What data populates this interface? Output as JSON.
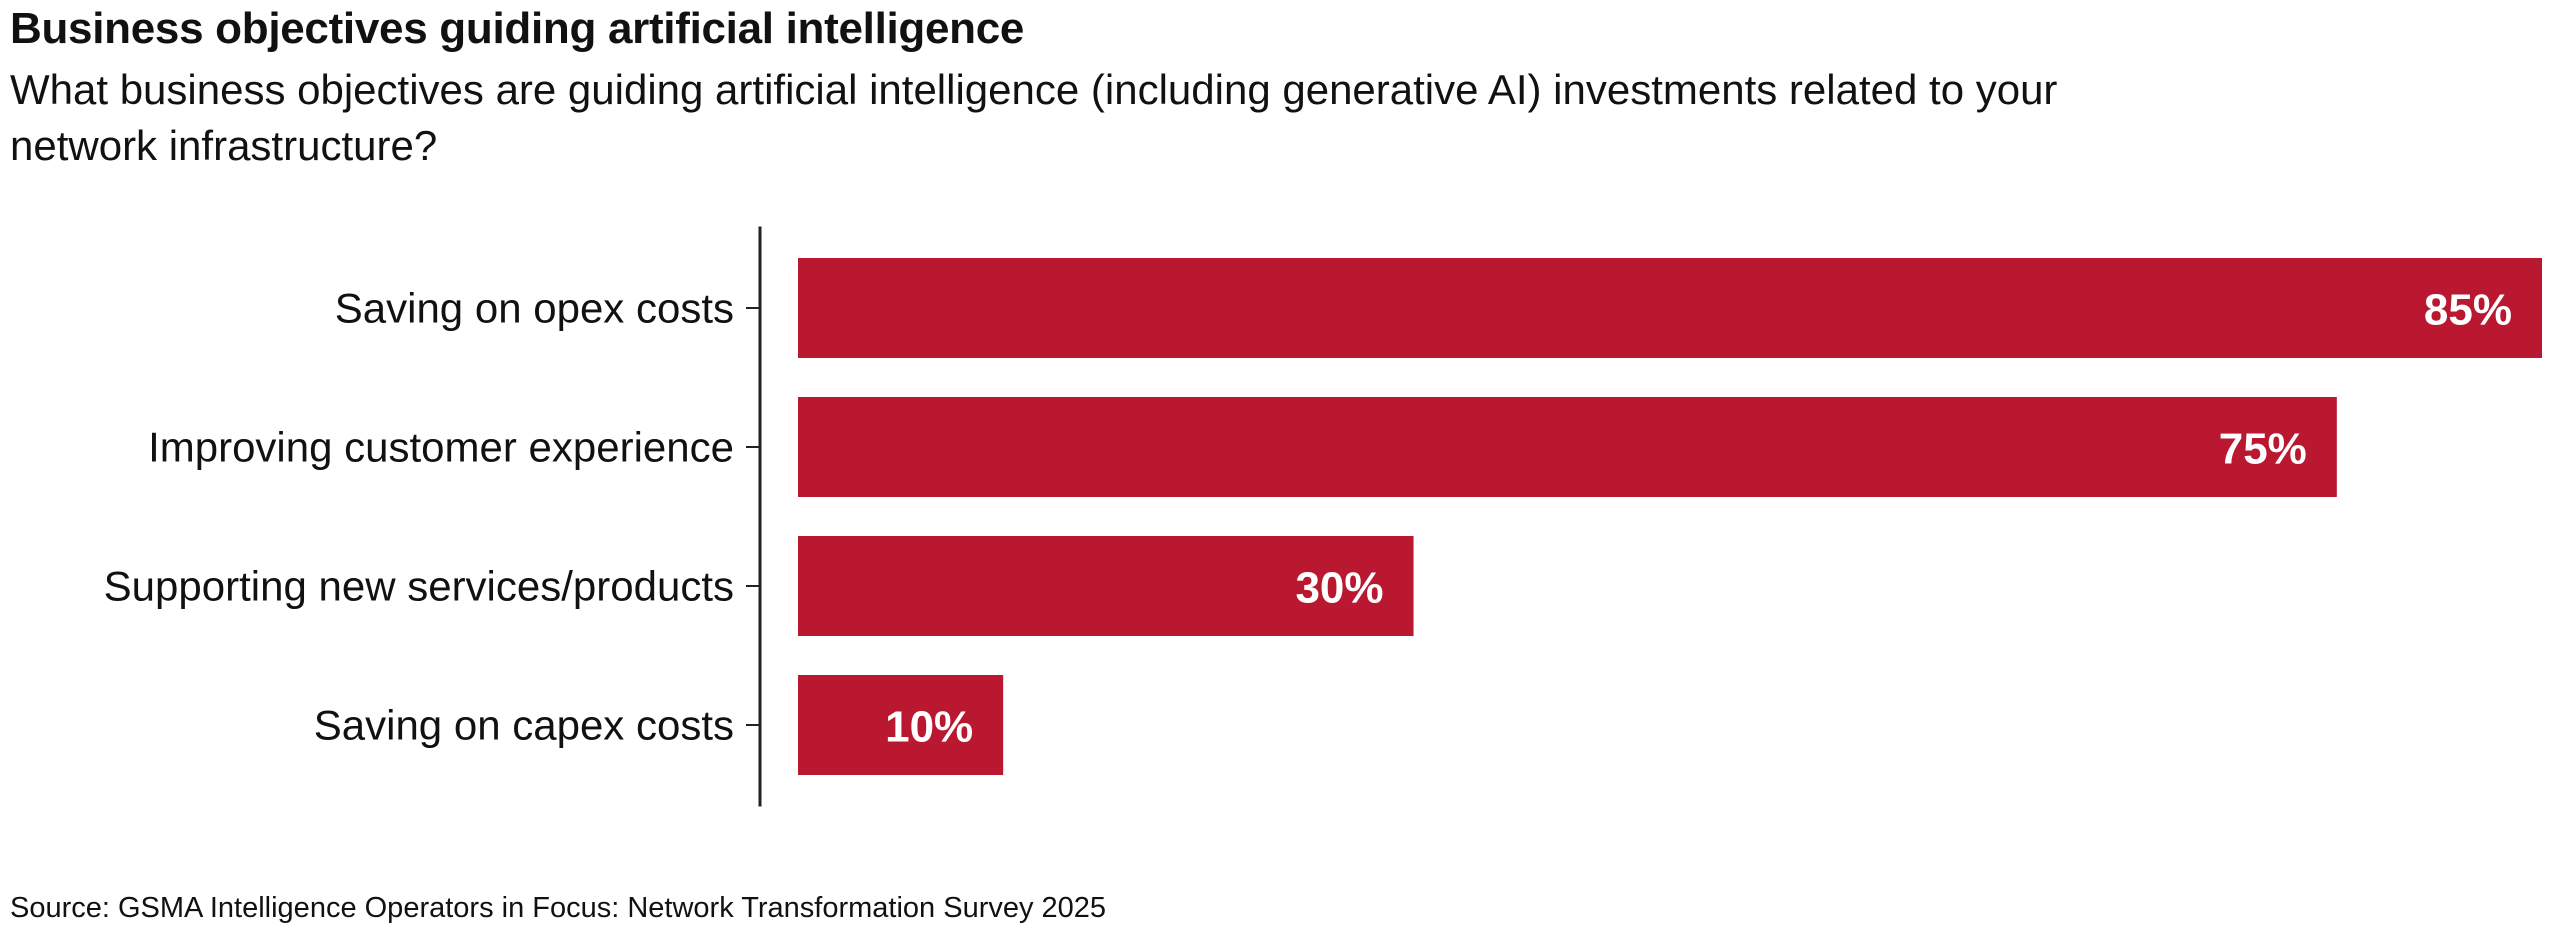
{
  "chart_data": {
    "type": "bar",
    "orientation": "horizontal",
    "title": "Business objectives guiding artificial intelligence",
    "subtitle": "What business objectives are guiding artificial intelligence (including generative AI) investments related to your network infrastructure?",
    "categories": [
      "Saving on opex costs",
      "Improving customer experience",
      "Supporting new services/products",
      "Saving on capex costs"
    ],
    "values": [
      85,
      75,
      30,
      10
    ],
    "value_labels": [
      "85%",
      "75%",
      "30%",
      "10%"
    ],
    "unit": "%",
    "xlim": [
      0,
      85
    ],
    "grid": false,
    "legend": "none",
    "source": "Source: GSMA Intelligence Operators in Focus: Network Transformation Survey 2025",
    "colors": {
      "bar": "#BA1830",
      "axis": "#222222",
      "value_label": "#FFFFFF"
    }
  }
}
